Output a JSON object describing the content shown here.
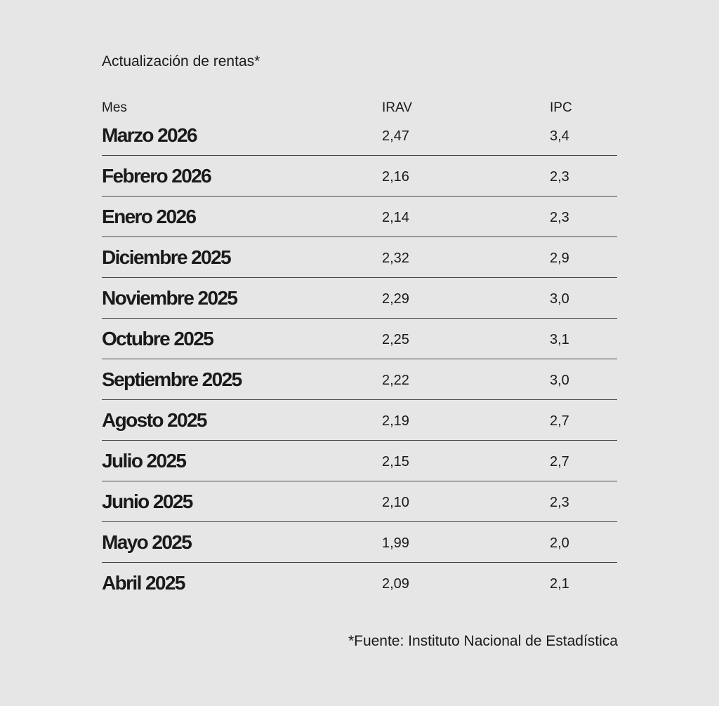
{
  "chart_data": {
    "type": "table",
    "title": "Actualización de rentas*",
    "columns": [
      "Mes",
      "IRAV",
      "IPC"
    ],
    "rows": [
      [
        "Marzo 2026",
        "2,47",
        "3,4"
      ],
      [
        "Febrero 2026",
        "2,16",
        "2,3"
      ],
      [
        "Enero 2026",
        "2,14",
        "2,3"
      ],
      [
        "Diciembre 2025",
        "2,32",
        "2,9"
      ],
      [
        "Noviembre 2025",
        "2,29",
        "3,0"
      ],
      [
        "Octubre 2025",
        "2,25",
        "3,1"
      ],
      [
        "Septiembre 2025",
        "2,22",
        "3,0"
      ],
      [
        "Agosto 2025",
        "2,19",
        "2,7"
      ],
      [
        "Julio 2025",
        "2,15",
        "2,7"
      ],
      [
        "Junio 2025",
        "2,10",
        "2,3"
      ],
      [
        "Mayo 2025",
        "1,99",
        "2,0"
      ],
      [
        "Abril 2025",
        "2,09",
        "2,1"
      ]
    ],
    "source": "*Fuente: Instituto Nacional de Estadística"
  },
  "colors": {
    "background": "#e6e6e6",
    "text": "#1a1a1a",
    "divider": "#444444"
  }
}
